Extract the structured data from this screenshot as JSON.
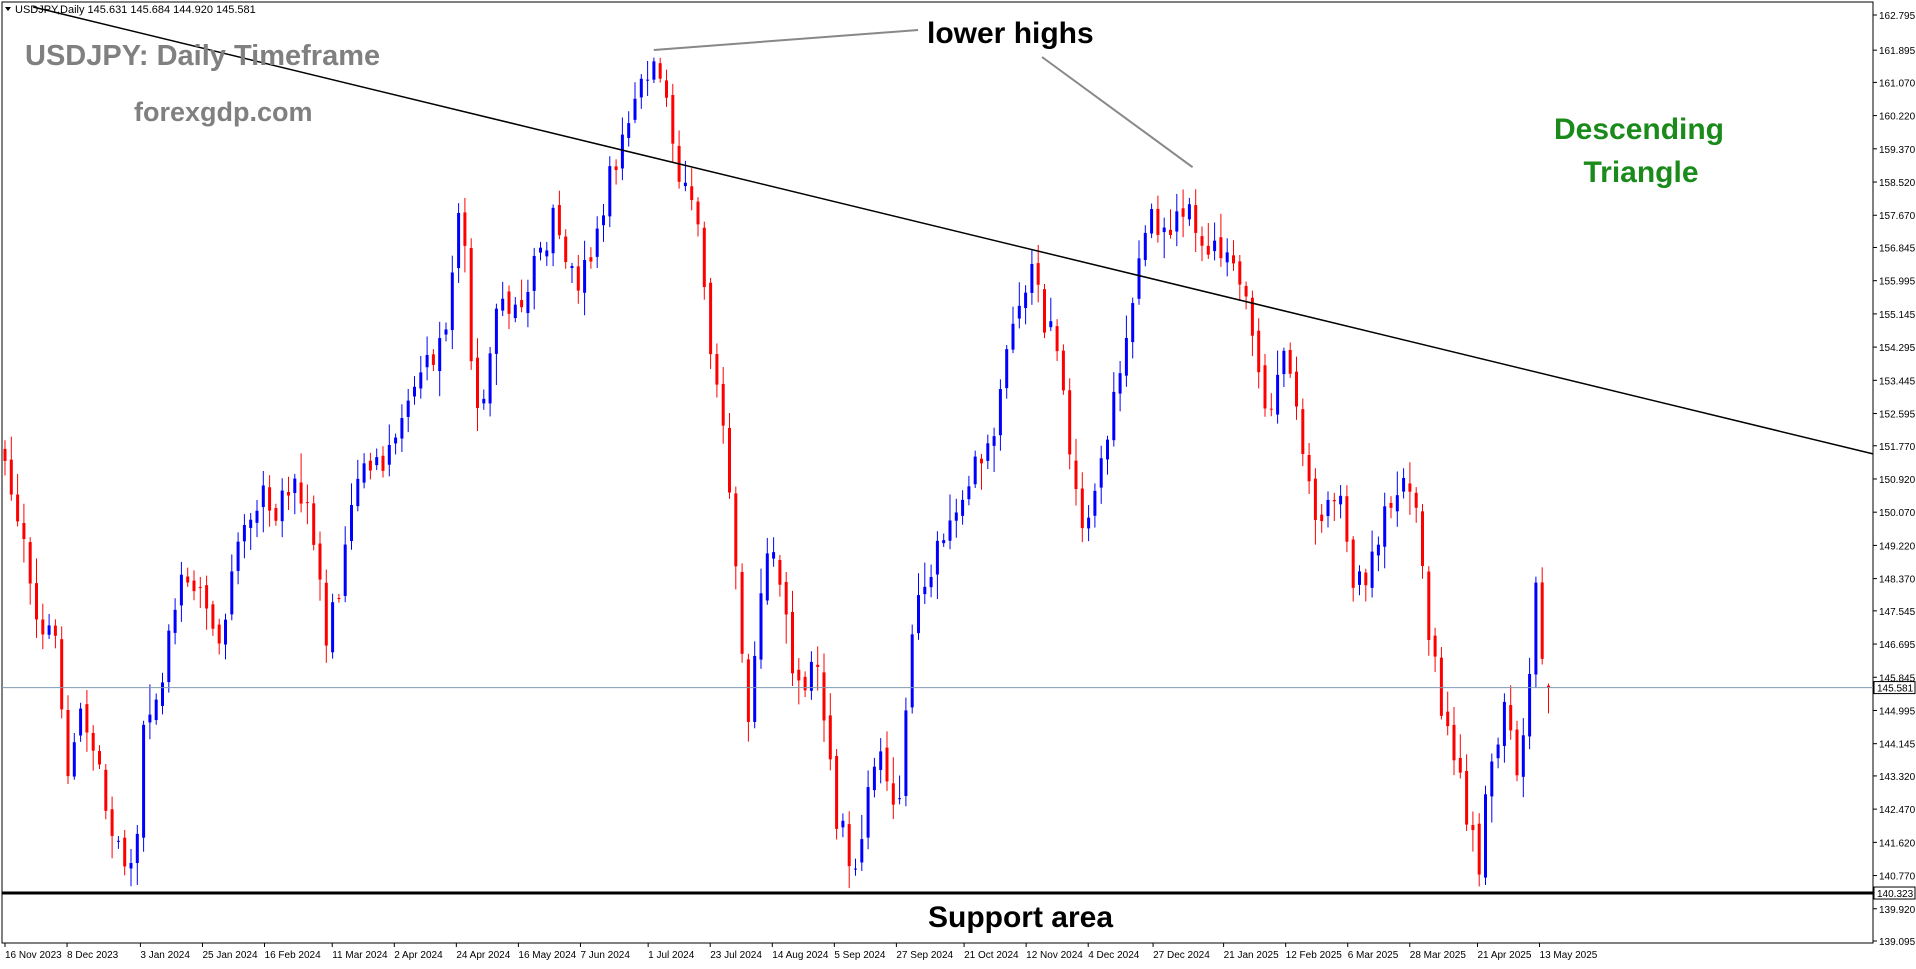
{
  "header": {
    "symbol_line": "USDJPY,Daily  145.631 145.684 144.920 145.581"
  },
  "annotations": {
    "title": "USDJPY: Daily Timeframe",
    "site": "forexgdp.com",
    "lower_highs": "lower highs",
    "pattern_line1": "Descending",
    "pattern_line2": "Triangle",
    "support": "Support area"
  },
  "colors": {
    "bull": "#0000ff",
    "bear": "#ff0000",
    "pattern_text": "#1a8a1a",
    "title_text": "#808080",
    "trendline": "#000000",
    "current_line": "#7f99b2"
  },
  "chart_data": {
    "type": "candlestick",
    "symbol": "USDJPY",
    "timeframe": "Daily",
    "ylim": [
      139.095,
      162.795
    ],
    "yticks": [
      "162.795",
      "161.895",
      "161.070",
      "160.220",
      "159.370",
      "158.520",
      "157.670",
      "156.845",
      "155.995",
      "155.145",
      "154.295",
      "153.445",
      "152.595",
      "151.770",
      "150.920",
      "150.070",
      "149.220",
      "148.370",
      "147.545",
      "146.695",
      "145.845",
      "144.995",
      "144.145",
      "143.320",
      "142.470",
      "141.620",
      "140.770",
      "139.920",
      "139.095"
    ],
    "xticks": [
      "16 Nov 2023",
      "8 Dec 2023",
      "3 Jan 2024",
      "25 Jan 2024",
      "16 Feb 2024",
      "11 Mar 2024",
      "2 Apr 2024",
      "24 Apr 2024",
      "16 May 2024",
      "7 Jun 2024",
      "1 Jul 2024",
      "23 Jul 2024",
      "14 Aug 2024",
      "5 Sep 2024",
      "27 Sep 2024",
      "21 Oct 2024",
      "12 Nov 2024",
      "4 Dec 2024",
      "27 Dec 2024",
      "21 Jan 2025",
      "12 Feb 2025",
      "6 Mar 2025",
      "28 Mar 2025",
      "21 Apr 2025",
      "13 May 2025"
    ],
    "current_price": 145.581,
    "current_price_label": "145.581",
    "support_level": 140.323,
    "support_label": "140.323",
    "trendline": {
      "start": {
        "date": "26 Nov 2023",
        "price": 163.0
      },
      "end": {
        "date": "11 Jul 2025",
        "price": 152.6
      }
    },
    "lower_highs": [
      {
        "date": "3 Jul 2024",
        "price": 161.9
      },
      {
        "date": "10 Jan 2025",
        "price": 158.9
      }
    ],
    "last_bar": {
      "open": 145.631,
      "high": 145.684,
      "low": 144.92,
      "close": 145.581
    },
    "price_path": [
      [
        "16 Nov 2023",
        151.4
      ],
      [
        "22 Nov 2023",
        149.3
      ],
      [
        "29 Nov 2023",
        147.0
      ],
      [
        "5 Dec 2023",
        146.9
      ],
      [
        "7 Dec 2023",
        142.6
      ],
      [
        "13 Dec 2023",
        145.0
      ],
      [
        "19 Dec 2023",
        143.5
      ],
      [
        "27 Dec 2023",
        141.3
      ],
      [
        "1 Jan 2024",
        141.4
      ],
      [
        "4 Jan 2024",
        144.1
      ],
      [
        "10 Jan 2024",
        145.4
      ],
      [
        "15 Jan 2024",
        147.9
      ],
      [
        "20 Jan 2024",
        148.2
      ],
      [
        "25 Jan 2024",
        147.7
      ],
      [
        "31 Jan 2024",
        146.8
      ],
      [
        "5 Feb 2024",
        148.6
      ],
      [
        "13 Feb 2024",
        150.5
      ],
      [
        "20 Feb 2024",
        150.2
      ],
      [
        "28 Feb 2024",
        150.7
      ],
      [
        "5 Mar 2024",
        149.7
      ],
      [
        "8 Mar 2024",
        147.0
      ],
      [
        "13 Mar 2024",
        147.8
      ],
      [
        "19 Mar 2024",
        150.9
      ],
      [
        "29 Mar 2024",
        151.3
      ],
      [
        "10 Apr 2024",
        153.2
      ],
      [
        "20 Apr 2024",
        154.6
      ],
      [
        "26 Apr 2024",
        158.3
      ],
      [
        "30 Apr 2024",
        153.0
      ],
      [
        "3 May 2024",
        153.0
      ],
      [
        "10 May 2024",
        155.8
      ],
      [
        "15 May 2024",
        155.0
      ],
      [
        "22 May 2024",
        156.6
      ],
      [
        "29 May 2024",
        157.6
      ],
      [
        "6 Jun 2024",
        155.7
      ],
      [
        "14 Jun 2024",
        157.4
      ],
      [
        "21 Jun 2024",
        159.8
      ],
      [
        "28 Jun 2024",
        161.0
      ],
      [
        "3 Jul 2024",
        161.7
      ],
      [
        "8 Jul 2024",
        160.9
      ],
      [
        "11 Jul 2024",
        158.7
      ],
      [
        "19 Jul 2024",
        157.4
      ],
      [
        "24 Jul 2024",
        153.9
      ],
      [
        "31 Jul 2024",
        150.1
      ],
      [
        "5 Aug 2024",
        144.2
      ],
      [
        "9 Aug 2024",
        147.6
      ],
      [
        "15 Aug 2024",
        149.2
      ],
      [
        "22 Aug 2024",
        145.3
      ],
      [
        "30 Aug 2024",
        146.2
      ],
      [
        "6 Sep 2024",
        142.3
      ],
      [
        "13 Sep 2024",
        141.0
      ],
      [
        "20 Sep 2024",
        143.9
      ],
      [
        "27 Sep 2024",
        142.3
      ],
      [
        "3 Oct 2024",
        146.9
      ],
      [
        "11 Oct 2024",
        149.2
      ],
      [
        "21 Oct 2024",
        150.8
      ],
      [
        "1 Nov 2024",
        152.5
      ],
      [
        "6 Nov 2024",
        154.7
      ],
      [
        "14 Nov 2024",
        156.3
      ],
      [
        "19 Nov 2024",
        154.6
      ],
      [
        "22 Nov 2024",
        154.8
      ],
      [
        "28 Nov 2024",
        151.5
      ],
      [
        "3 Dec 2024",
        149.5
      ],
      [
        "10 Dec 2024",
        151.9
      ],
      [
        "18 Dec 2024",
        154.7
      ],
      [
        "24 Dec 2024",
        157.2
      ],
      [
        "2 Jan 2025",
        157.3
      ],
      [
        "10 Jan 2025",
        158.0
      ],
      [
        "15 Jan 2025",
        156.8
      ],
      [
        "22 Jan 2025",
        156.5
      ],
      [
        "29 Jan 2025",
        155.3
      ],
      [
        "5 Feb 2025",
        152.6
      ],
      [
        "12 Feb 2025",
        154.3
      ],
      [
        "18 Feb 2025",
        151.5
      ],
      [
        "24 Feb 2025",
        149.9
      ],
      [
        "3 Mar 2025",
        150.6
      ],
      [
        "7 Mar 2025",
        148.5
      ],
      [
        "13 Mar 2025",
        148.3
      ],
      [
        "19 Mar 2025",
        149.9
      ],
      [
        "26 Mar 2025",
        150.9
      ],
      [
        "31 Mar 2025",
        149.8
      ],
      [
        "4 Apr 2025",
        146.9
      ],
      [
        "8 Apr 2025",
        145.0
      ],
      [
        "14 Apr 2025",
        143.2
      ],
      [
        "22 Apr 2025",
        140.7
      ],
      [
        "25 Apr 2025",
        143.2
      ],
      [
        "1 May 2025",
        145.4
      ],
      [
        "6 May 2025",
        143.2
      ],
      [
        "12 May 2025",
        148.1
      ],
      [
        "15 May 2025",
        145.6
      ],
      [
        "16 May 2025",
        145.581
      ]
    ]
  }
}
